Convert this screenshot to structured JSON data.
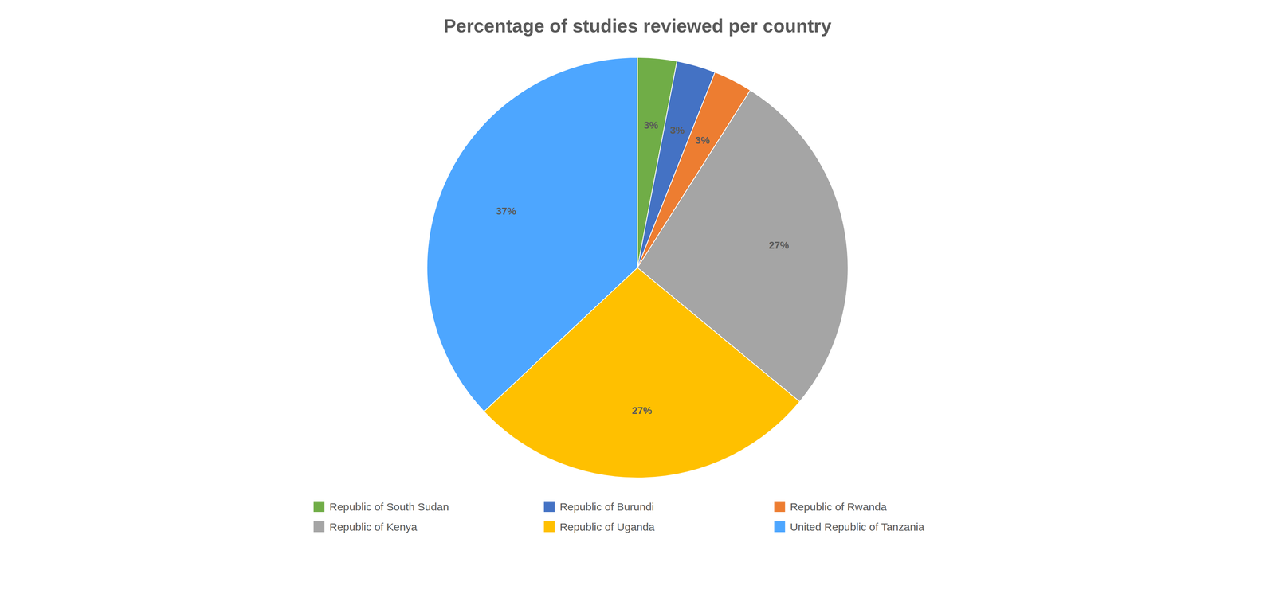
{
  "chart_data": {
    "type": "pie",
    "title": "Percentage of studies reviewed per country",
    "categories": [
      "Republic of South Sudan",
      "Republic of Burundi",
      "Republic of Rwanda",
      "Republic of Kenya",
      "Republic of Uganda",
      "United Republic of Tanzania"
    ],
    "values": [
      3,
      3,
      3,
      27,
      27,
      37
    ],
    "value_labels": [
      "3%",
      "3%",
      "3%",
      "27%",
      "27%",
      "37%"
    ],
    "colors": [
      "#70AD47",
      "#4472C4",
      "#ED7D31",
      "#A5A5A5",
      "#FFC000",
      "#4DA6FF"
    ],
    "data_labels": true,
    "legend": "bottom"
  }
}
